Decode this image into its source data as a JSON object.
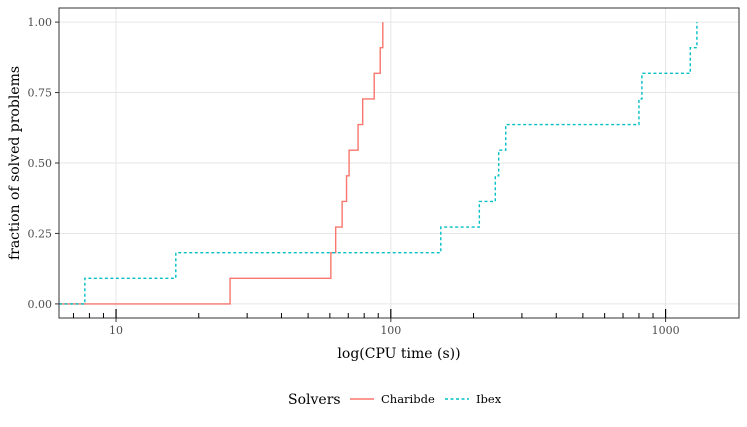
{
  "chart_data": {
    "type": "line",
    "title": "",
    "xlabel": "log(CPU time (s))",
    "ylabel": "fraction of solved problems",
    "x_scale": "log10",
    "xlim": [
      6.2,
      1850
    ],
    "ylim": [
      -0.05,
      1.05
    ],
    "x_ticks": [
      10,
      100,
      1000
    ],
    "x_tick_labels": [
      "10",
      "100",
      "1000"
    ],
    "y_ticks": [
      0,
      0.25,
      0.5,
      0.75,
      1.0
    ],
    "y_tick_labels": [
      "0.00",
      "0.25",
      "0.50",
      "0.75",
      "1.00"
    ],
    "rug_ticks": [
      7,
      8,
      9,
      20,
      30,
      40,
      50,
      60,
      70,
      80,
      90,
      200,
      300,
      400,
      500,
      600,
      700,
      800,
      900
    ],
    "grid": true,
    "legend": {
      "title": "Solvers",
      "position": "bottom"
    },
    "series": [
      {
        "name": "Charibde",
        "color": "#F8766D",
        "linestyle": "solid",
        "step_x": [
          6.2,
          26.0,
          60.5,
          63.0,
          66.5,
          69.0,
          70.5,
          76.0,
          79.0,
          87.0,
          91.5,
          93.5
        ],
        "step_y": [
          0.0,
          0.0909,
          0.1818,
          0.2727,
          0.3636,
          0.4545,
          0.5455,
          0.6364,
          0.7273,
          0.8182,
          0.9091,
          1.0
        ]
      },
      {
        "name": "Ibex",
        "color": "#00BFC4",
        "linestyle": "dashed",
        "step_x": [
          6.2,
          7.7,
          16.5,
          152.0,
          210.0,
          240.0,
          247.0,
          262.0,
          800.0,
          820.0,
          1230.0,
          1300.0
        ],
        "step_y": [
          0.0,
          0.0909,
          0.1818,
          0.2727,
          0.3636,
          0.4545,
          0.5455,
          0.6364,
          0.7273,
          0.8182,
          0.9091,
          1.0
        ]
      }
    ]
  }
}
